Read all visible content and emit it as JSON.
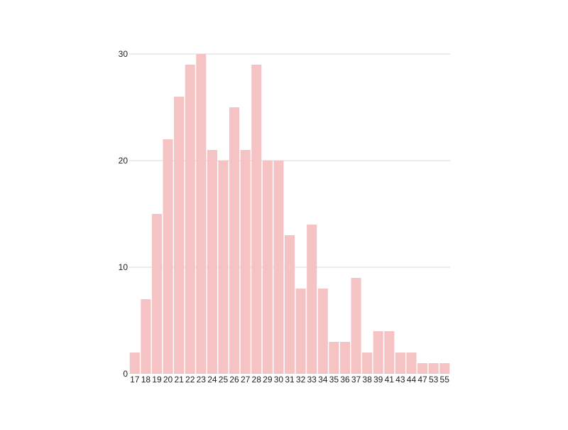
{
  "chart_data": {
    "type": "bar",
    "title": "",
    "xlabel": "",
    "ylabel": "",
    "categories": [
      "17",
      "18",
      "19",
      "20",
      "21",
      "22",
      "23",
      "24",
      "25",
      "26",
      "27",
      "28",
      "29",
      "30",
      "31",
      "32",
      "33",
      "34",
      "35",
      "36",
      "37",
      "38",
      "39",
      "41",
      "43",
      "44",
      "47",
      "53",
      "55"
    ],
    "values": [
      2,
      7,
      15,
      22,
      26,
      29,
      30,
      21,
      20,
      25,
      21,
      29,
      20,
      20,
      13,
      8,
      14,
      8,
      3,
      3,
      9,
      2,
      4,
      4,
      2,
      2,
      1,
      1,
      1
    ],
    "ylim": [
      0,
      30
    ],
    "yticks": [
      0,
      10,
      20,
      30
    ],
    "grid": true,
    "legend": "none",
    "colors": {
      "bar": "#f5c3c3",
      "grid": "#d9d9d9",
      "text": "#222222",
      "background": "#ffffff"
    }
  }
}
